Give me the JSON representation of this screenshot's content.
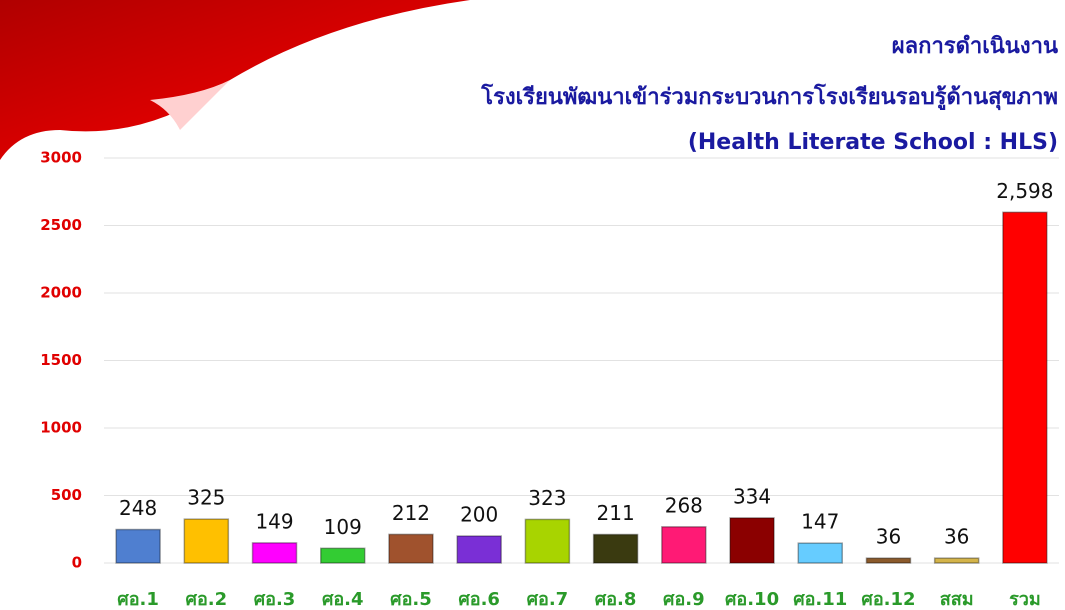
{
  "chart_data": {
    "type": "bar",
    "title": "ผลการดำเนินงาน",
    "subtitle": "โรงเรียนพัฒนาเข้าร่วมกระบวนการโรงเรียนรอบรู้ด้านสุขภาพ",
    "subtitle2": "(Health Literate School : HLS)",
    "categories": [
      "ศอ.1",
      "ศอ.2",
      "ศอ.3",
      "ศอ.4",
      "ศอ.5",
      "ศอ.6",
      "ศอ.7",
      "ศอ.8",
      "ศอ.9",
      "ศอ.10",
      "ศอ.11",
      "ศอ.12",
      "สสม",
      "รวม"
    ],
    "values": [
      248,
      325,
      149,
      109,
      212,
      200,
      323,
      211,
      268,
      334,
      147,
      36,
      36,
      2598
    ],
    "value_labels": [
      "248",
      "325",
      "149",
      "109",
      "212",
      "200",
      "323",
      "211",
      "268",
      "334",
      "147",
      "36",
      "36",
      "2,598"
    ],
    "colors": [
      "#4f7fd0",
      "#ffc000",
      "#ff00ff",
      "#33cc33",
      "#a0522d",
      "#7a2fd6",
      "#a8d400",
      "#3a3a10",
      "#ff1a75",
      "#8b0000",
      "#66ccff",
      "#8b5a2b",
      "#d4b44a",
      "#ff0000"
    ],
    "ylim": [
      0,
      3000
    ],
    "yticks": [
      0,
      500,
      1000,
      1500,
      2000,
      2500,
      3000
    ],
    "grid": true
  }
}
